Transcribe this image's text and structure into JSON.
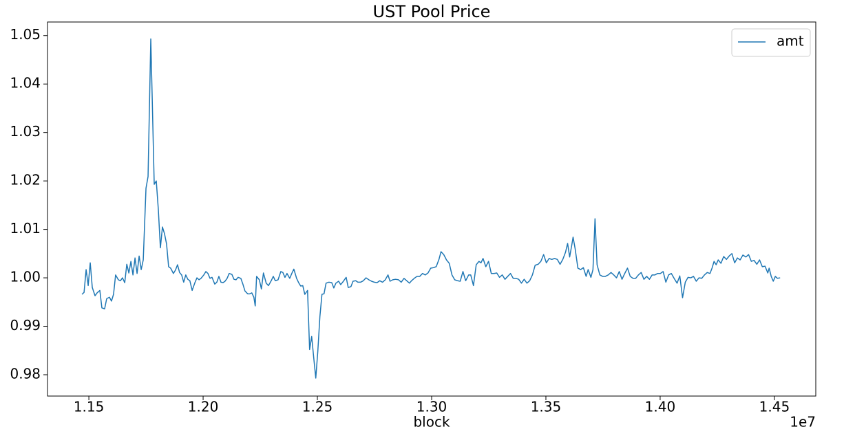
{
  "chart_data": {
    "type": "line",
    "title": "UST Pool Price",
    "xlabel": "block",
    "x_offset_label": "1e7",
    "legend": "upper right",
    "grid": false,
    "xlim": [
      1.1319,
      1.4681
    ],
    "ylim": [
      0.9756,
      1.0528
    ],
    "xticks": [
      1.15,
      {
        "value": 1.2,
        "label": "1.20"
      },
      1.25,
      {
        "value": 1.3,
        "label": "1.30"
      },
      1.35,
      {
        "value": 1.4,
        "label": "1.40"
      },
      1.45
    ],
    "yticks": [
      {
        "value": 0.98,
        "label": "0.98"
      },
      0.99,
      {
        "value": 1.0,
        "label": "1.00"
      },
      1.01,
      1.02,
      1.03,
      1.04,
      1.05
    ],
    "x": [
      1.147,
      1.1479,
      1.1488,
      1.1497,
      1.1506,
      1.1515,
      1.1527,
      1.1536,
      1.1548,
      1.1557,
      1.1569,
      1.1578,
      1.159,
      1.1599,
      1.1608,
      1.1617,
      1.1629,
      1.1638,
      1.1647,
      1.1657,
      1.1666,
      1.1675,
      1.1684,
      1.1693,
      1.1702,
      1.1711,
      1.172,
      1.1729,
      1.1738,
      1.175,
      1.1759,
      1.1771,
      1.1777,
      1.1786,
      1.1795,
      1.1804,
      1.1813,
      1.1822,
      1.1831,
      1.184,
      1.1849,
      1.1858,
      1.187,
      1.1879,
      1.1888,
      1.1897,
      1.1906,
      1.1915,
      1.1924,
      1.1933,
      1.1942,
      1.1952,
      1.1964,
      1.1973,
      1.1982,
      1.1991,
      1.2003,
      1.2012,
      1.2021,
      1.203,
      1.2039,
      1.2051,
      1.206,
      1.2069,
      1.2078,
      1.2087,
      1.2096,
      1.2105,
      1.2114,
      1.2126,
      1.2135,
      1.2144,
      1.2153,
      1.2165,
      1.2174,
      1.2183,
      1.2195,
      1.2204,
      1.2213,
      1.2222,
      1.2228,
      1.2234,
      1.2246,
      1.2255,
      1.2264,
      1.2276,
      1.2286,
      1.2298,
      1.2307,
      1.2316,
      1.2328,
      1.234,
      1.2349,
      1.2358,
      1.2367,
      1.2379,
      1.2388,
      1.2397,
      1.2409,
      1.2418,
      1.2427,
      1.2436,
      1.2445,
      1.2457,
      1.2466,
      1.2475,
      1.2484,
      1.2493,
      1.2502,
      1.2511,
      1.252,
      1.2529,
      1.2538,
      1.255,
      1.2563,
      1.2572,
      1.2581,
      1.2593,
      1.2602,
      1.2614,
      1.2626,
      1.2635,
      1.2647,
      1.2656,
      1.2668,
      1.2677,
      1.2689,
      1.2701,
      1.2713,
      1.2725,
      1.2737,
      1.2749,
      1.2761,
      1.2773,
      1.2785,
      1.2797,
      1.2809,
      1.2818,
      1.283,
      1.2842,
      1.2855,
      1.2867,
      1.2879,
      1.2891,
      1.2903,
      1.2912,
      1.2924,
      1.2936,
      1.2948,
      1.296,
      1.2972,
      1.2984,
      1.2996,
      1.3008,
      1.302,
      1.3032,
      1.3041,
      1.3053,
      1.3065,
      1.3077,
      1.3089,
      1.3101,
      1.3113,
      1.3125,
      1.3137,
      1.3149,
      1.3162,
      1.3171,
      1.3183,
      1.3195,
      1.3207,
      1.3216,
      1.3225,
      1.3237,
      1.3249,
      1.3261,
      1.3273,
      1.3285,
      1.3297,
      1.3309,
      1.3321,
      1.3333,
      1.3345,
      1.3357,
      1.3369,
      1.3381,
      1.3393,
      1.3405,
      1.3417,
      1.3429,
      1.3441,
      1.3453,
      1.3466,
      1.3478,
      1.349,
      1.3502,
      1.3514,
      1.3526,
      1.3538,
      1.355,
      1.3562,
      1.3574,
      1.3586,
      1.3595,
      1.3604,
      1.3613,
      1.3619,
      1.3628,
      1.364,
      1.3652,
      1.3664,
      1.3676,
      1.3685,
      1.3697,
      1.3706,
      1.3715,
      1.3724,
      1.3736,
      1.3748,
      1.376,
      1.3773,
      1.3785,
      1.3797,
      1.3809,
      1.3821,
      1.3833,
      1.3845,
      1.3857,
      1.3869,
      1.3881,
      1.3893,
      1.3905,
      1.3917,
      1.3929,
      1.3941,
      1.3953,
      1.3965,
      1.3977,
      1.3989,
      1.4001,
      1.4013,
      1.4025,
      1.4037,
      1.4049,
      1.4061,
      1.4074,
      1.4086,
      1.4098,
      1.411,
      1.4122,
      1.4134,
      1.4146,
      1.4158,
      1.417,
      1.4182,
      1.4194,
      1.4206,
      1.4218,
      1.4227,
      1.4236,
      1.4245,
      1.4254,
      1.4266,
      1.4278,
      1.429,
      1.4302,
      1.4314,
      1.4326,
      1.4338,
      1.435,
      1.4362,
      1.4375,
      1.4387,
      1.4399,
      1.4411,
      1.4423,
      1.4435,
      1.4447,
      1.4459,
      1.4471,
      1.4477,
      1.4486,
      1.4495,
      1.4504,
      1.4513,
      1.4525
    ],
    "series": [
      {
        "name": "amt",
        "color": "#1f77b4",
        "values": [
          0.9966,
          0.997,
          1.0017,
          0.9984,
          1.0031,
          0.998,
          0.9963,
          0.9969,
          0.9974,
          0.9938,
          0.9936,
          0.9957,
          0.996,
          0.9952,
          0.9966,
          1.0006,
          0.9996,
          0.9994,
          1.0,
          0.999,
          1.0028,
          1.001,
          1.0034,
          1.0006,
          1.0041,
          1.0009,
          1.0045,
          1.0017,
          1.0037,
          1.0185,
          1.0209,
          1.0493,
          1.0375,
          1.0193,
          1.02,
          1.0141,
          1.0062,
          1.0105,
          1.0091,
          1.007,
          1.0023,
          1.002,
          1.0009,
          1.0016,
          1.0027,
          1.0011,
          1.0006,
          0.9991,
          1.0006,
          0.9997,
          0.9994,
          0.9974,
          0.999,
          1.0,
          0.9996,
          0.9999,
          1.0006,
          1.0013,
          1.0009,
          0.9999,
          1.0001,
          0.9987,
          0.9991,
          1.0003,
          0.9991,
          0.999,
          0.9993,
          0.9999,
          1.0009,
          1.0007,
          0.9997,
          0.9996,
          1.0001,
          0.9999,
          0.9987,
          0.9973,
          0.9967,
          0.9967,
          0.9969,
          0.996,
          0.9942,
          1.0003,
          0.9996,
          0.9977,
          1.001,
          0.9989,
          0.9984,
          0.9994,
          1.0003,
          0.9994,
          0.9996,
          1.0013,
          1.0011,
          1.0001,
          1.0009,
          0.9999,
          1.0009,
          1.0018,
          0.9999,
          0.999,
          0.9983,
          0.9984,
          0.9966,
          0.9974,
          0.9852,
          0.9879,
          0.9835,
          0.9793,
          0.9849,
          0.992,
          0.9966,
          0.9967,
          0.9989,
          0.9991,
          0.999,
          0.9979,
          0.9989,
          0.9993,
          0.9986,
          0.9993,
          1.0001,
          0.998,
          0.9982,
          0.9993,
          0.9994,
          0.9991,
          0.9991,
          0.9994,
          1.0,
          0.9996,
          0.9993,
          0.9991,
          0.999,
          0.9994,
          0.9991,
          0.9996,
          1.0006,
          0.9993,
          0.9996,
          0.9997,
          0.9996,
          0.9991,
          0.9999,
          0.9994,
          0.9989,
          0.9994,
          0.9999,
          1.0003,
          1.0003,
          1.0009,
          1.0006,
          1.001,
          1.002,
          1.0021,
          1.0023,
          1.0038,
          1.0054,
          1.0048,
          1.0037,
          1.003,
          1.0006,
          0.9996,
          0.9994,
          0.9993,
          1.0013,
          0.9994,
          1.0006,
          1.0006,
          0.9984,
          1.0027,
          1.0034,
          1.0031,
          1.004,
          1.0023,
          1.0034,
          1.0009,
          1.0009,
          1.001,
          1.0001,
          1.0006,
          0.9997,
          1.0003,
          1.0009,
          0.9999,
          0.9999,
          0.9997,
          0.9989,
          0.9997,
          0.9989,
          0.9994,
          1.0006,
          1.0026,
          1.0028,
          1.0034,
          1.0048,
          1.0031,
          1.004,
          1.0038,
          1.004,
          1.0038,
          1.0028,
          1.0038,
          1.0053,
          1.0071,
          1.0043,
          1.0067,
          1.0084,
          1.006,
          1.002,
          1.0017,
          1.0021,
          1.0003,
          1.0017,
          1.0001,
          1.0017,
          1.0122,
          1.0027,
          1.0006,
          1.0003,
          1.0003,
          1.0006,
          1.0011,
          1.0006,
          1.0,
          1.0013,
          0.9997,
          1.0009,
          1.002,
          1.0003,
          0.9999,
          0.9999,
          1.0006,
          1.0011,
          0.9997,
          1.0003,
          0.9997,
          1.0006,
          1.0006,
          1.0009,
          1.0009,
          1.0013,
          0.9991,
          1.0006,
          1.0009,
          0.9999,
          0.9989,
          1.0004,
          0.9959,
          0.9991,
          1.0001,
          1.0,
          1.0003,
          0.9993,
          1.0,
          0.9999,
          1.0006,
          1.0011,
          1.0009,
          1.002,
          1.0034,
          1.0027,
          1.0037,
          1.003,
          1.0044,
          1.0038,
          1.0045,
          1.005,
          1.0031,
          1.0041,
          1.0037,
          1.0047,
          1.0043,
          1.0048,
          1.0034,
          1.0036,
          1.0028,
          1.0037,
          1.0023,
          1.0024,
          1.001,
          1.002,
          1.0003,
          0.9993,
          1.0003,
          0.9999,
          1.0
        ]
      }
    ]
  }
}
